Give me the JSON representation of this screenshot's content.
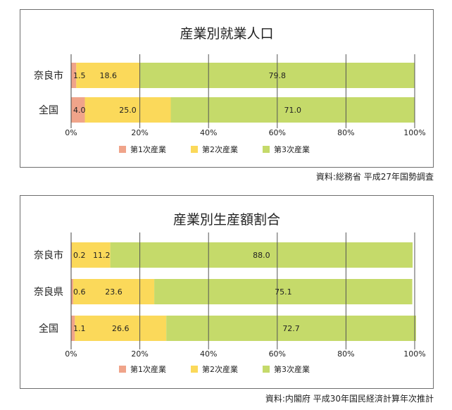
{
  "chart_data": [
    {
      "type": "bar",
      "orientation": "horizontal",
      "stacked": true,
      "title": "産業別就業人口",
      "categories": [
        "奈良市",
        "全国"
      ],
      "series": [
        {
          "name": "第1次産業",
          "values": [
            1.5,
            4.0
          ],
          "labels": [
            "1.5",
            "4.0"
          ]
        },
        {
          "name": "第2次産業",
          "values": [
            18.6,
            25.0
          ],
          "labels": [
            "18.6",
            "25.0"
          ]
        },
        {
          "name": "第3次産業",
          "values": [
            79.8,
            71.0
          ],
          "labels": [
            "79.8",
            "71.0"
          ]
        }
      ],
      "ticks": [
        "0%",
        "20%",
        "40%",
        "60%",
        "80%",
        "100%"
      ],
      "xlim": [
        0,
        100
      ],
      "grid": true,
      "legend": "bottom",
      "source": "資料:総務省 平成27年国勢調査"
    },
    {
      "type": "bar",
      "orientation": "horizontal",
      "stacked": true,
      "title": "産業別生産額割合",
      "categories": [
        "奈良市",
        "奈良県",
        "全国"
      ],
      "series": [
        {
          "name": "第1次産業",
          "values": [
            0.2,
            0.6,
            1.1
          ],
          "labels": [
            "0.2",
            "0.6",
            "1.1"
          ]
        },
        {
          "name": "第2次産業",
          "values": [
            11.2,
            23.6,
            26.6
          ],
          "labels": [
            "11.2",
            "23.6",
            "26.6"
          ]
        },
        {
          "name": "第3次産業",
          "values": [
            88.0,
            75.1,
            72.7
          ],
          "labels": [
            "88.0",
            "75.1",
            "72.7"
          ]
        }
      ],
      "ticks": [
        "0%",
        "20%",
        "40%",
        "60%",
        "80%",
        "100%"
      ],
      "xlim": [
        0,
        100
      ],
      "grid": true,
      "legend": "bottom",
      "source": "資料:内閣府 平成30年国民経済計算年次推計"
    }
  ],
  "colors": {
    "primary": "#f0a48a",
    "secondary": "#fbd95a",
    "tertiary": "#c5da6a",
    "grid": "#555555",
    "axis": "#444444"
  }
}
